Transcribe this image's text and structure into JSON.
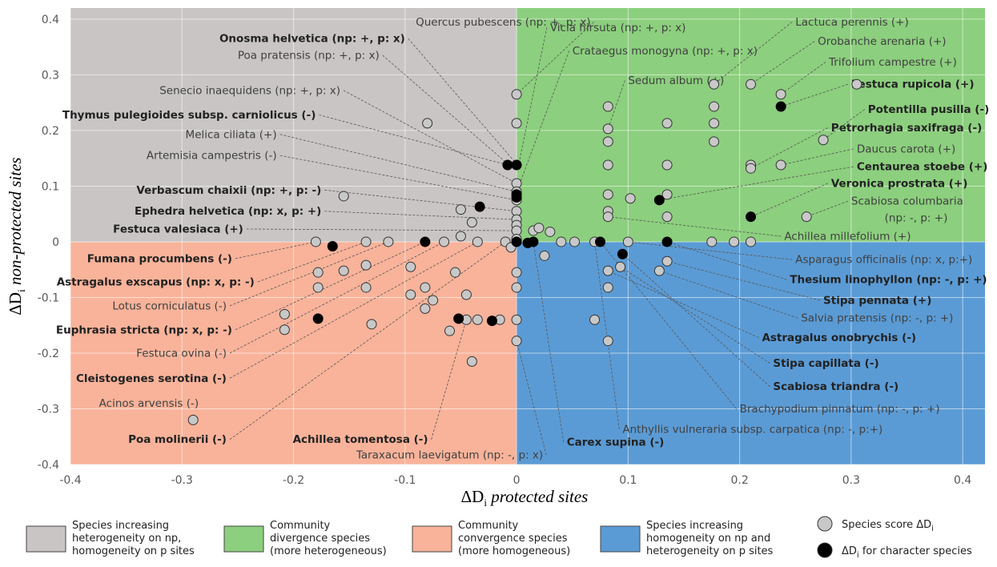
{
  "chart_data": {
    "type": "scatter",
    "xlabel_prefix": "ΔD",
    "xlabel_sub": "i",
    "xlabel_text": "protected sites",
    "ylabel_prefix": "ΔD",
    "ylabel_sub": "i",
    "ylabel_text": "non-protected sites",
    "xlim": [
      -0.4,
      0.42
    ],
    "ylim": [
      -0.4,
      0.42
    ],
    "x_ticks": [
      -0.4,
      -0.3,
      -0.2,
      -0.1,
      0,
      0.1,
      0.2,
      0.3,
      0.4
    ],
    "x_tick_labels": [
      "-0.4",
      "-0.3",
      "-0.2",
      "-0.1",
      "0",
      "0.1",
      "0.2",
      "0.3",
      "0.4"
    ],
    "y_ticks": [
      -0.4,
      -0.3,
      -0.2,
      -0.1,
      0,
      0.1,
      0.2,
      0.3,
      0.4
    ],
    "y_tick_labels": [
      "-0.4",
      "-0.3",
      "-0.2",
      "-0.1",
      "0",
      "0.1",
      "0.2",
      "0.3",
      "0.4"
    ],
    "grid": true,
    "quadrant_colors": {
      "top_left": "#c9c5c5",
      "top_right": "#8ccf7e",
      "bottom_left": "#f8b39a",
      "bottom_right": "#5b9bd5"
    },
    "species_points": [
      [
        0,
        0.265
      ],
      [
        0,
        0.213
      ],
      [
        -0.08,
        0.213
      ],
      [
        0,
        0.105
      ],
      [
        0,
        0.09
      ],
      [
        0,
        0.075
      ],
      [
        0,
        0.055
      ],
      [
        0,
        0.04
      ],
      [
        0,
        0.03
      ],
      [
        0,
        0.02
      ],
      [
        0,
        0.005
      ],
      [
        -0.155,
        0.082
      ],
      [
        -0.05,
        0.058
      ],
      [
        -0.04,
        0.035
      ],
      [
        -0.05,
        0.01
      ],
      [
        -0.01,
        0
      ],
      [
        -0.18,
        0
      ],
      [
        -0.135,
        0
      ],
      [
        -0.115,
        0
      ],
      [
        -0.065,
        0
      ],
      [
        -0.035,
        0
      ],
      [
        -0.005,
        -0.01
      ],
      [
        0.015,
        0.02
      ],
      [
        0.02,
        0.025
      ],
      [
        0.03,
        0.018
      ],
      [
        0.04,
        0
      ],
      [
        0.052,
        0
      ],
      [
        0.07,
        0
      ],
      [
        0.1,
        0
      ],
      [
        0.175,
        0
      ],
      [
        0.195,
        0
      ],
      [
        0.21,
        0
      ],
      [
        0.025,
        -0.025
      ],
      [
        0.082,
        0.243
      ],
      [
        0.082,
        0.203
      ],
      [
        0.082,
        0.18
      ],
      [
        0.082,
        0.138
      ],
      [
        0.082,
        0.085
      ],
      [
        0.082,
        0.055
      ],
      [
        0.082,
        0.045
      ],
      [
        0.102,
        0.078
      ],
      [
        0.135,
        0.213
      ],
      [
        0.135,
        0.138
      ],
      [
        0.135,
        0.085
      ],
      [
        0.135,
        0.045
      ],
      [
        0.177,
        0.283
      ],
      [
        0.177,
        0.243
      ],
      [
        0.177,
        0.213
      ],
      [
        0.177,
        0.18
      ],
      [
        0.21,
        0.283
      ],
      [
        0.21,
        0.138
      ],
      [
        0.21,
        0.132
      ],
      [
        0.237,
        0.265
      ],
      [
        0.237,
        0.138
      ],
      [
        0.275,
        0.183
      ],
      [
        0.26,
        0.045
      ],
      [
        0.305,
        0.283
      ],
      [
        0.082,
        -0.052
      ],
      [
        0.082,
        -0.082
      ],
      [
        0.082,
        -0.178
      ],
      [
        0.135,
        -0.035
      ],
      [
        0.128,
        -0.052
      ],
      [
        0.093,
        -0.045
      ],
      [
        0.07,
        -0.14
      ],
      [
        -0.178,
        -0.055
      ],
      [
        -0.178,
        -0.082
      ],
      [
        -0.155,
        -0.052
      ],
      [
        -0.135,
        -0.042
      ],
      [
        -0.135,
        -0.082
      ],
      [
        -0.095,
        -0.045
      ],
      [
        -0.082,
        -0.082
      ],
      [
        -0.082,
        -0.12
      ],
      [
        -0.095,
        -0.095
      ],
      [
        -0.075,
        -0.105
      ],
      [
        -0.055,
        -0.055
      ],
      [
        -0.06,
        -0.16
      ],
      [
        -0.045,
        -0.14
      ],
      [
        -0.045,
        -0.095
      ],
      [
        -0.035,
        -0.14
      ],
      [
        -0.015,
        -0.14
      ],
      [
        0,
        -0.055
      ],
      [
        0,
        -0.082
      ],
      [
        0,
        -0.14
      ],
      [
        0,
        -0.178
      ],
      [
        -0.04,
        -0.215
      ],
      [
        -0.208,
        -0.13
      ],
      [
        -0.208,
        -0.158
      ],
      [
        -0.13,
        -0.148
      ],
      [
        -0.29,
        -0.32
      ]
    ],
    "character_points": [
      [
        -0.008,
        0.138
      ],
      [
        0,
        0.138
      ],
      [
        0,
        0.085
      ],
      [
        0,
        0.08
      ],
      [
        -0.033,
        0.063
      ],
      [
        0.128,
        0.075
      ],
      [
        0.21,
        0.045
      ],
      [
        0.237,
        0.243
      ],
      [
        0,
        0
      ],
      [
        -0.082,
        0
      ],
      [
        0.075,
        0
      ],
      [
        0.135,
        0
      ],
      [
        0.015,
        0
      ],
      [
        0.01,
        -0.002
      ],
      [
        0.095,
        -0.022
      ],
      [
        -0.165,
        -0.008
      ],
      [
        -0.178,
        -0.138
      ],
      [
        -0.052,
        -0.138
      ],
      [
        -0.022,
        -0.142
      ]
    ],
    "labels": [
      {
        "text": "Quercus pubescens (np: +, p: x)",
        "bold": false,
        "anchor": "middle",
        "tx": -0.012,
        "ty": 0.395,
        "px": 0,
        "py": 0.265
      },
      {
        "text": "Vicia hirsuta (np: +, p: x)",
        "bold": false,
        "anchor": "start",
        "tx": 0.03,
        "ty": 0.385,
        "px": 0.002,
        "py": 0.14
      },
      {
        "text": "Onosma helvetica (np: +, p: x)",
        "bold": true,
        "anchor": "end",
        "tx": -0.1,
        "ty": 0.365,
        "px": 0,
        "py": 0.14
      },
      {
        "text": "Crataegus monogyna (np: +, p: x)",
        "bold": false,
        "anchor": "start",
        "tx": 0.05,
        "ty": 0.343,
        "px": 0.002,
        "py": 0.1
      },
      {
        "text": "Poa pratensis (np: +, p: x)",
        "bold": false,
        "anchor": "end",
        "tx": -0.123,
        "ty": 0.335,
        "px": -0.008,
        "py": 0.14
      },
      {
        "text": "Senecio inaequidens (np: +, p: x)",
        "bold": false,
        "anchor": "end",
        "tx": -0.158,
        "ty": 0.272,
        "px": 0,
        "py": 0.105
      },
      {
        "text": "Thymus pulegioides subsp. carniolicus (-)",
        "bold": true,
        "anchor": "end",
        "tx": -0.18,
        "ty": 0.228,
        "px": -0.008,
        "py": 0.138
      },
      {
        "text": "Melica ciliata (+)",
        "bold": false,
        "anchor": "end",
        "tx": -0.215,
        "ty": 0.193,
        "px": 0,
        "py": 0.09
      },
      {
        "text": "Artemisia campestris (-)",
        "bold": false,
        "anchor": "end",
        "tx": -0.215,
        "ty": 0.155,
        "px": 0,
        "py": 0.075
      },
      {
        "text": "Verbascum chaixii (np: +, p: -)",
        "bold": true,
        "anchor": "end",
        "tx": -0.175,
        "ty": 0.093,
        "px": 0,
        "py": 0.055
      },
      {
        "text": "Ephedra helvetica (np: x, p: +)",
        "bold": true,
        "anchor": "end",
        "tx": -0.175,
        "ty": 0.055,
        "px": 0,
        "py": 0.04
      },
      {
        "text": "Festuca valesiaca (+)",
        "bold": true,
        "anchor": "end",
        "tx": -0.245,
        "ty": 0.023,
        "px": 0,
        "py": 0.02
      },
      {
        "text": "Lactuca perennis (+)",
        "bold": false,
        "anchor": "start",
        "tx": 0.25,
        "ty": 0.395,
        "px": 0.177,
        "py": 0.283
      },
      {
        "text": "Orobanche arenaria (+)",
        "bold": false,
        "anchor": "start",
        "tx": 0.27,
        "ty": 0.36,
        "px": 0.21,
        "py": 0.283
      },
      {
        "text": "Trifolium campestre (+)",
        "bold": false,
        "anchor": "start",
        "tx": 0.28,
        "ty": 0.323,
        "px": 0.237,
        "py": 0.265
      },
      {
        "text": "Sedum album (+)",
        "bold": false,
        "anchor": "start",
        "tx": 0.1,
        "ty": 0.29,
        "px": 0.082,
        "py": 0.203
      },
      {
        "text": "Festuca rupicola (+)",
        "bold": true,
        "anchor": "start",
        "tx": 0.3,
        "ty": 0.283,
        "px": 0.237,
        "py": 0.243
      },
      {
        "text": "Potentilla pusilla (-)",
        "bold": true,
        "anchor": "start",
        "tx": 0.315,
        "ty": 0.238,
        "px": 0.275,
        "py": 0.183
      },
      {
        "text": "Petrorhagia saxifraga (-)",
        "bold": true,
        "anchor": "start",
        "tx": 0.282,
        "ty": 0.205,
        "px": 0.21,
        "py": 0.132
      },
      {
        "text": "Daucus carota (+)",
        "bold": false,
        "anchor": "start",
        "tx": 0.305,
        "ty": 0.167,
        "px": 0.237,
        "py": 0.138
      },
      {
        "text": "Centaurea stoebe (+)",
        "bold": true,
        "anchor": "start",
        "tx": 0.305,
        "ty": 0.135,
        "px": 0.128,
        "py": 0.075
      },
      {
        "text": "Veronica prostrata (+)",
        "bold": true,
        "anchor": "start",
        "tx": 0.282,
        "ty": 0.105,
        "px": 0.21,
        "py": 0.045
      },
      {
        "text": "Scabiosa columbaria",
        "bold": false,
        "anchor": "start",
        "tx": 0.3,
        "ty": 0.073,
        "px": 0.26,
        "py": 0.045
      },
      {
        "text": "(np: -, p: +)",
        "bold": false,
        "anchor": "start",
        "tx": 0.33,
        "ty": 0.043,
        "px": null,
        "py": null
      },
      {
        "text": "Achillea millefolium (+)",
        "bold": false,
        "anchor": "start",
        "tx": 0.24,
        "ty": 0.01,
        "px": 0.082,
        "py": 0.045
      },
      {
        "text": "Asparagus officinalis (np: x, p:+)",
        "bold": false,
        "anchor": "start",
        "tx": 0.25,
        "ty": -0.032,
        "px": 0.1,
        "py": 0
      },
      {
        "text": "Thesium linophyllon (np: -, p: +)",
        "bold": true,
        "anchor": "start",
        "tx": 0.245,
        "ty": -0.068,
        "px": 0.135,
        "py": 0
      },
      {
        "text": "Stipa pennata (+)",
        "bold": true,
        "anchor": "start",
        "tx": 0.275,
        "ty": -0.105,
        "px": 0.135,
        "py": -0.035
      },
      {
        "text": "Salvia pratensis (np: -, p: +)",
        "bold": false,
        "anchor": "start",
        "tx": 0.255,
        "ty": -0.137,
        "px": 0.128,
        "py": -0.052
      },
      {
        "text": "Astragalus onobrychis (-)",
        "bold": true,
        "anchor": "start",
        "tx": 0.22,
        "ty": -0.172,
        "px": 0.082,
        "py": -0.052
      },
      {
        "text": "Stipa capillata (-)",
        "bold": true,
        "anchor": "start",
        "tx": 0.23,
        "ty": -0.218,
        "px": 0.093,
        "py": -0.045
      },
      {
        "text": "Scabiosa triandra (-)",
        "bold": true,
        "anchor": "start",
        "tx": 0.23,
        "ty": -0.26,
        "px": 0.095,
        "py": -0.022
      },
      {
        "text": "Brachypodium pinnatum (np: -, p: +)",
        "bold": false,
        "anchor": "start",
        "tx": 0.2,
        "ty": -0.3,
        "px": 0.075,
        "py": 0
      },
      {
        "text": "Anthyllis vulneraria subsp. carpatica (np: -, p:+)",
        "bold": false,
        "anchor": "start",
        "tx": 0.095,
        "ty": -0.337,
        "px": 0.07,
        "py": 0
      },
      {
        "text": "Carex supina (-)",
        "bold": true,
        "anchor": "start",
        "tx": 0.045,
        "ty": -0.36,
        "px": 0.015,
        "py": 0
      },
      {
        "text": "Taraxacum laevigatum (np: -, p: x)",
        "bold": false,
        "anchor": "middle",
        "tx": -0.06,
        "ty": -0.383,
        "px": 0,
        "py": -0.178
      },
      {
        "text": "Fumana procumbens (-)",
        "bold": true,
        "anchor": "end",
        "tx": -0.255,
        "ty": -0.03,
        "px": -0.18,
        "py": 0
      },
      {
        "text": "Astragalus exscapus (np: x, p: -)",
        "bold": true,
        "anchor": "end",
        "tx": -0.235,
        "ty": -0.072,
        "px": -0.135,
        "py": 0
      },
      {
        "text": "Lotus corniculatus (-)",
        "bold": false,
        "anchor": "end",
        "tx": -0.26,
        "ty": -0.115,
        "px": -0.115,
        "py": 0
      },
      {
        "text": "Euphrasia stricta (np: x, p: -)",
        "bold": true,
        "anchor": "end",
        "tx": -0.255,
        "ty": -0.158,
        "px": -0.082,
        "py": 0
      },
      {
        "text": "Festuca ovina (-)",
        "bold": false,
        "anchor": "end",
        "tx": -0.26,
        "ty": -0.2,
        "px": -0.065,
        "py": 0
      },
      {
        "text": "Cleistogenes serotina (-)",
        "bold": true,
        "anchor": "end",
        "tx": -0.26,
        "ty": -0.245,
        "px": -0.035,
        "py": 0
      },
      {
        "text": "Acinos arvensis (-)",
        "bold": false,
        "anchor": "end",
        "tx": -0.285,
        "ty": -0.29,
        "px": null,
        "py": null
      },
      {
        "text": "Poa molinerii (-)",
        "bold": true,
        "anchor": "end",
        "tx": -0.26,
        "ty": -0.355,
        "px": -0.01,
        "py": 0
      },
      {
        "text": "Achillea tomentosa (-)",
        "bold": true,
        "anchor": "middle",
        "tx": -0.14,
        "ty": -0.355,
        "px": -0.045,
        "py": -0.14
      }
    ]
  },
  "legend": [
    {
      "color": "#c9c5c5",
      "lines": [
        "Species increasing",
        "heterogeneity on np,",
        "homogeneity on p sites"
      ]
    },
    {
      "color": "#8ccf7e",
      "lines": [
        "Community",
        "divergence species",
        "(more heterogeneous)"
      ]
    },
    {
      "color": "#f8b39a",
      "lines": [
        "Community",
        "convergence species",
        "(more homogeneous)"
      ]
    },
    {
      "color": "#5b9bd5",
      "lines": [
        "Species increasing",
        "homogeneity on np and",
        "heterogeneity on p sites"
      ]
    }
  ],
  "marker_legend": [
    {
      "fill": "#c8c8c8",
      "text": "Species score ΔD",
      "sub": "i",
      "suffix": ""
    },
    {
      "fill": "#000000",
      "text": "ΔD",
      "sub": "i",
      "suffix": " for character species"
    }
  ]
}
